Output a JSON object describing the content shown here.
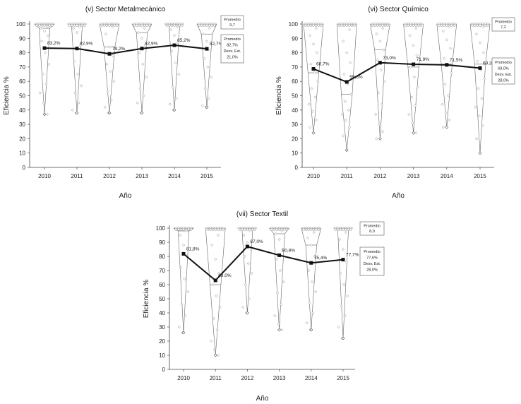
{
  "chart_data": [
    {
      "type": "line",
      "title": "(v) Sector Metalmecánico",
      "xlabel": "Año",
      "ylabel": "Eficiencia %",
      "categories": [
        "2010",
        "2011",
        "2012",
        "2013",
        "2014",
        "2015"
      ],
      "values": [
        83.2,
        82.9,
        79.2,
        82.9,
        85.2,
        82.7
      ],
      "data_labels": [
        "83,2%",
        "82,9%",
        "79,2%",
        "82,9%",
        "85,2%",
        "82,7%"
      ],
      "ylim": [
        0,
        100
      ],
      "yticks": [
        "0",
        "10",
        "20",
        "30",
        "40",
        "50",
        "60",
        "70",
        "80",
        "90",
        "100"
      ],
      "promedio_box": {
        "title": "Promedio",
        "value": "9,7"
      },
      "stats_box": {
        "promedio_label": "Promedio",
        "promedio": "82,7%",
        "desv_label": "Desv. Est.",
        "desv": "21,0%"
      },
      "distributions": [
        {
          "min": 37,
          "median": 97,
          "points": [
            100,
            99,
            98,
            97,
            95,
            92,
            88,
            80,
            72,
            65,
            58,
            52,
            45,
            37
          ]
        },
        {
          "min": 38,
          "median": 100,
          "points": [
            100,
            99,
            98,
            97,
            94,
            85,
            74,
            65,
            57,
            52,
            45,
            40,
            38
          ]
        },
        {
          "min": 38,
          "median": 84,
          "points": [
            100,
            99,
            98,
            93,
            84,
            78,
            72,
            67,
            60,
            53,
            47,
            42,
            38
          ]
        },
        {
          "min": 38,
          "median": 94,
          "points": [
            100,
            99,
            97,
            94,
            90,
            85,
            80,
            72,
            63,
            55,
            50,
            45,
            38
          ]
        },
        {
          "min": 40,
          "median": 100,
          "points": [
            100,
            99,
            98,
            96,
            92,
            87,
            81,
            73,
            65,
            56,
            48,
            44,
            40
          ]
        },
        {
          "min": 42,
          "median": 93,
          "points": [
            100,
            99,
            97,
            93,
            88,
            82,
            76,
            70,
            63,
            55,
            48,
            43,
            42
          ]
        }
      ]
    },
    {
      "type": "line",
      "title": "(vi) Sector Químico",
      "xlabel": "Año",
      "ylabel": "Eficiencia %",
      "categories": [
        "2010",
        "2011",
        "2012",
        "2013",
        "2014",
        "2015"
      ],
      "values": [
        68.7,
        59.6,
        73.0,
        71.9,
        71.5,
        69.3
      ],
      "data_labels": [
        "68,7%",
        "59,6%",
        "73,0%",
        "71,9%",
        "71,5%",
        "69,3%"
      ],
      "ylim": [
        0,
        100
      ],
      "yticks": [
        "0",
        "10",
        "20",
        "30",
        "40",
        "50",
        "60",
        "70",
        "80",
        "90",
        "100"
      ],
      "promedio_box": {
        "title": "Promedio",
        "value": "7,2"
      },
      "stats_box": {
        "promedio_label": "Promedio",
        "promedio": "69,0%",
        "desv_label": "Desv. Est.",
        "desv": "28,0%"
      },
      "distributions": [
        {
          "min": 24,
          "median": 66,
          "points": [
            100,
            99,
            97,
            92,
            86,
            80,
            72,
            66,
            60,
            55,
            49,
            44,
            39,
            33,
            28,
            24
          ]
        },
        {
          "min": 12,
          "median": 51,
          "points": [
            100,
            99,
            96,
            88,
            80,
            73,
            65,
            58,
            51,
            46,
            40,
            37,
            33,
            28,
            22,
            12
          ]
        },
        {
          "min": 20,
          "median": 82,
          "points": [
            100,
            99,
            97,
            93,
            88,
            82,
            75,
            68,
            60,
            52,
            44,
            37,
            30,
            25,
            20
          ]
        },
        {
          "min": 24,
          "median": 70,
          "points": [
            100,
            99,
            97,
            92,
            85,
            78,
            70,
            63,
            56,
            49,
            43,
            37,
            31,
            24
          ]
        },
        {
          "min": 28,
          "median": 72,
          "points": [
            100,
            99,
            98,
            95,
            89,
            83,
            76,
            72,
            66,
            58,
            50,
            44,
            38,
            33,
            28
          ]
        },
        {
          "min": 10,
          "median": 72,
          "points": [
            100,
            99,
            98,
            93,
            87,
            80,
            74,
            68,
            62,
            55,
            48,
            42,
            36,
            29,
            20,
            10
          ]
        }
      ]
    },
    {
      "type": "line",
      "title": "(vii) Sector Textil",
      "xlabel": "Año",
      "ylabel": "Eficiencia %",
      "categories": [
        "2010",
        "2011",
        "2012",
        "2013",
        "2014",
        "2015"
      ],
      "values": [
        81.8,
        63.0,
        87.0,
        80.8,
        75.4,
        77.7
      ],
      "data_labels": [
        "81,8%",
        "63,0%",
        "87,0%",
        "80,8%",
        "75,4%",
        "77,7%"
      ],
      "ylim": [
        0,
        100
      ],
      "yticks": [
        "0",
        "10",
        "20",
        "30",
        "40",
        "50",
        "60",
        "70",
        "80",
        "90",
        "100"
      ],
      "promedio_box": {
        "title": "Promedio",
        "value": "8,0"
      },
      "stats_box": {
        "promedio_label": "Promedio",
        "promedio": "77,6%",
        "desv_label": "Desv. Est.",
        "desv": "28,0%"
      },
      "distributions": [
        {
          "min": 26,
          "median": 98,
          "points": [
            100,
            99,
            98,
            95,
            88,
            80,
            72,
            64,
            55,
            46,
            38,
            30,
            26
          ]
        },
        {
          "min": 10,
          "median": 60,
          "points": [
            100,
            99,
            95,
            88,
            78,
            68,
            60,
            52,
            44,
            36,
            28,
            20,
            14,
            10
          ]
        },
        {
          "min": 40,
          "median": 100,
          "points": [
            100,
            99,
            98,
            95,
            90,
            85,
            80,
            75,
            68,
            60,
            50,
            44,
            40
          ]
        },
        {
          "min": 28,
          "median": 96,
          "points": [
            100,
            99,
            98,
            96,
            92,
            85,
            78,
            70,
            62,
            54,
            46,
            38,
            32,
            28
          ]
        },
        {
          "min": 28,
          "median": 88,
          "points": [
            100,
            99,
            97,
            93,
            88,
            80,
            70,
            62,
            55,
            47,
            40,
            33,
            28
          ]
        },
        {
          "min": 22,
          "median": 100,
          "points": [
            100,
            99,
            97,
            92,
            85,
            76,
            68,
            60,
            52,
            45,
            38,
            30,
            22
          ]
        }
      ]
    }
  ]
}
